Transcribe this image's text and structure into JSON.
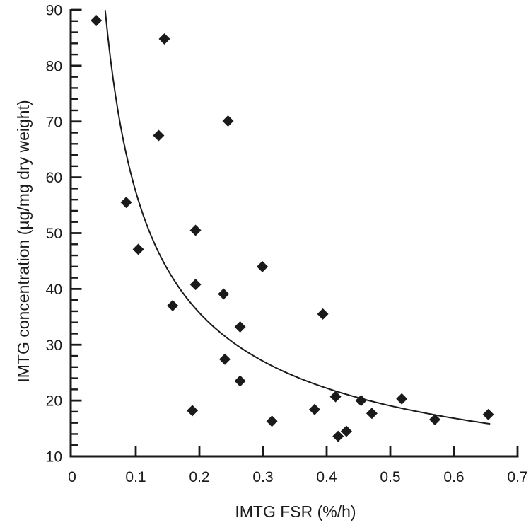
{
  "figure": {
    "background": "#ffffff",
    "ink_color": "#1a1a1a"
  },
  "chart_data": {
    "type": "scatter",
    "title": "",
    "xlabel": "IMTG FSR (%/h)",
    "ylabel": "IMTG concentration (µg/mg dry weight)",
    "xlim": [
      0,
      0.7
    ],
    "ylim": [
      10,
      90
    ],
    "x_ticks": [
      0,
      0.1,
      0.2,
      0.3,
      0.4,
      0.5,
      0.6,
      0.7
    ],
    "x_tick_labels": [
      "0",
      "0.1",
      "0.2",
      "0.3",
      "0.4",
      "0.5",
      "0.6",
      "0.7"
    ],
    "y_ticks": [
      10,
      20,
      30,
      40,
      50,
      60,
      70,
      80,
      90
    ],
    "y_tick_labels": [
      "10",
      "20",
      "30",
      "40",
      "50",
      "60",
      "70",
      "80",
      "90"
    ],
    "y_minor_tick_step": 2,
    "grid": false,
    "legend": null,
    "marker": "filled-diamond",
    "points": [
      {
        "x": 0.038,
        "y": 88.1
      },
      {
        "x": 0.145,
        "y": 84.8
      },
      {
        "x": 0.245,
        "y": 70.1
      },
      {
        "x": 0.136,
        "y": 67.5
      },
      {
        "x": 0.085,
        "y": 55.5
      },
      {
        "x": 0.194,
        "y": 50.5
      },
      {
        "x": 0.104,
        "y": 47.1
      },
      {
        "x": 0.299,
        "y": 44.0
      },
      {
        "x": 0.194,
        "y": 40.8
      },
      {
        "x": 0.238,
        "y": 39.1
      },
      {
        "x": 0.158,
        "y": 37.0
      },
      {
        "x": 0.264,
        "y": 33.2
      },
      {
        "x": 0.24,
        "y": 27.4
      },
      {
        "x": 0.264,
        "y": 23.5
      },
      {
        "x": 0.189,
        "y": 18.2
      },
      {
        "x": 0.394,
        "y": 35.5
      },
      {
        "x": 0.314,
        "y": 16.3
      },
      {
        "x": 0.381,
        "y": 18.4
      },
      {
        "x": 0.414,
        "y": 20.7
      },
      {
        "x": 0.454,
        "y": 20.0
      },
      {
        "x": 0.471,
        "y": 17.7
      },
      {
        "x": 0.518,
        "y": 20.3
      },
      {
        "x": 0.57,
        "y": 16.6
      },
      {
        "x": 0.654,
        "y": 17.5
      },
      {
        "x": 0.418,
        "y": 13.6
      },
      {
        "x": 0.431,
        "y": 14.5
      }
    ],
    "fit_curve": {
      "type": "power",
      "equation": "y = 11.86 * x^-0.685",
      "a": 11.86,
      "b": -0.685,
      "x_start": 0.052,
      "x_end": 0.657
    }
  }
}
